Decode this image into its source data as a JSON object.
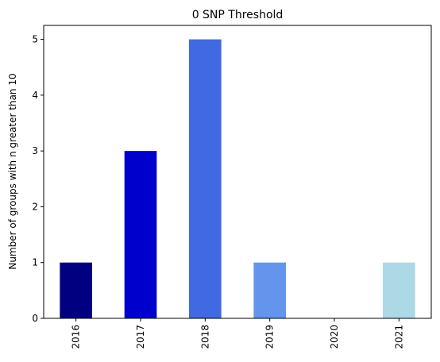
{
  "chart_data": {
    "type": "bar",
    "title": "0 SNP Threshold",
    "xlabel": "",
    "ylabel": "Number of groups with n greater than 10",
    "categories": [
      "2016",
      "2017",
      "2018",
      "2019",
      "2020",
      "2021"
    ],
    "values": [
      1,
      3,
      5,
      1,
      0,
      1
    ],
    "bar_colors": [
      "#000080",
      "#0000CD",
      "#4169E1",
      "#6495ED",
      "#87CEFA",
      "#ADD8E6"
    ],
    "yticks": [
      "0",
      "1",
      "2",
      "3",
      "4",
      "5"
    ],
    "ylim": [
      0,
      5.25
    ],
    "grid": false,
    "legend": "none"
  }
}
